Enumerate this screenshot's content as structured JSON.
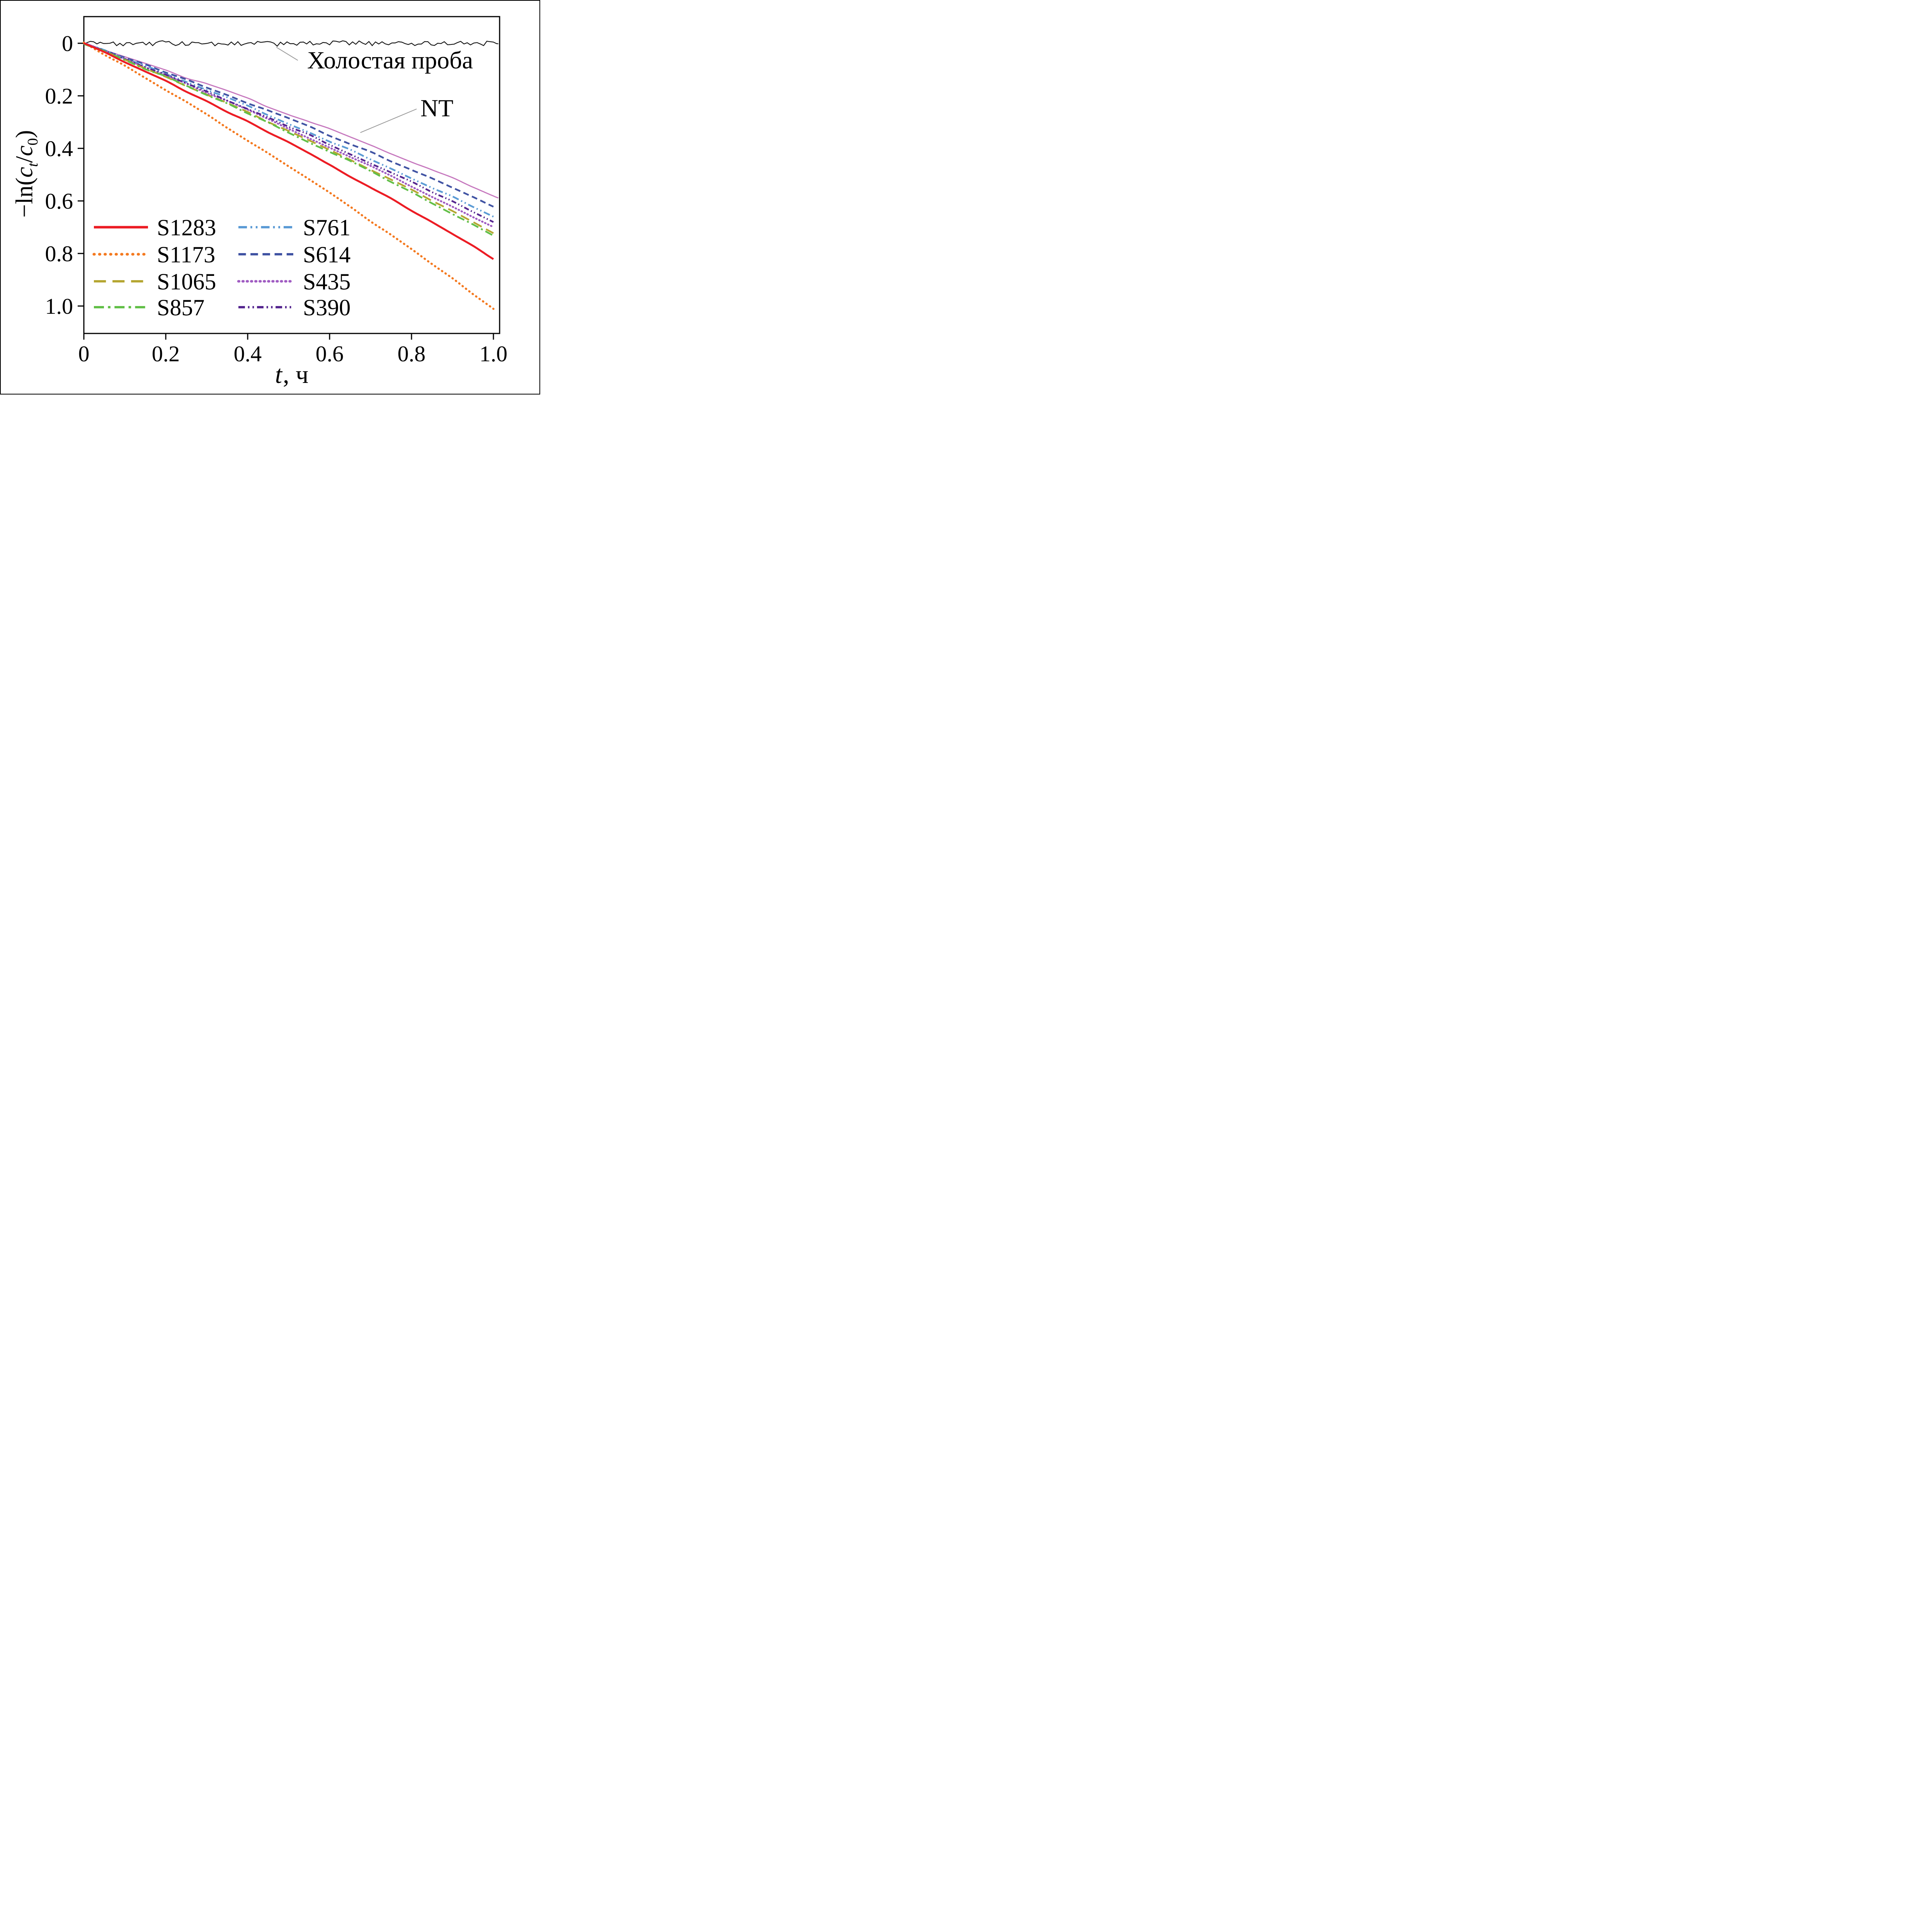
{
  "figure": {
    "background": "#ffffff",
    "border_color": "#000000"
  },
  "chart_data": {
    "type": "line",
    "title": "",
    "xlabel_var": "t",
    "xlabel_rest": ", ч",
    "ylabel": {
      "pre": "−ln(",
      "c1": "c",
      "sub1": "t",
      "slash": "/",
      "c2": "c",
      "sub2": "0",
      "post": ")"
    },
    "xlim": [
      0,
      1.015
    ],
    "ylim_display": [
      -0.1,
      1.1
    ],
    "y_inverted": true,
    "grid": false,
    "xticks": [
      0,
      0.2,
      0.4,
      0.6,
      0.8,
      1.0
    ],
    "xtick_labels": [
      "0",
      "0.2",
      "0.4",
      "0.6",
      "0.8",
      "1.0"
    ],
    "yticks": [
      0,
      0.2,
      0.4,
      0.6,
      0.8,
      1.0
    ],
    "ytick_labels": [
      "0",
      "0.2",
      "0.4",
      "0.6",
      "0.8",
      "1.0"
    ],
    "x": [
      0,
      0.1,
      0.2,
      0.3,
      0.4,
      0.5,
      0.6,
      0.7,
      0.8,
      0.9,
      1.0
    ],
    "series": [
      {
        "name": "Холостая проба",
        "color": "#141414",
        "dash": "solid",
        "width": 2.2,
        "noise_amp": 0.009,
        "noise_step": 0.008,
        "x_end": 1.013,
        "in_legend": false,
        "values": [
          0,
          0.002,
          -0.001,
          0.002,
          0.0,
          0.003,
          -0.002,
          0.001,
          0.002,
          -0.001,
          0.001
        ]
      },
      {
        "name": "NT",
        "color": "#c678be",
        "dash": "solid",
        "width": 3,
        "noise_amp": 0.004,
        "noise_step": 0.05,
        "x_end": 1.012,
        "in_legend": false,
        "values": [
          0,
          0.05,
          0.102,
          0.156,
          0.211,
          0.268,
          0.327,
          0.388,
          0.45,
          0.514,
          0.58
        ]
      },
      {
        "name": "S614",
        "color": "#4053a3",
        "dash": "mdash",
        "width": 4.5,
        "noise_amp": 0.003,
        "noise_step": 0.05,
        "x_end": 1.0,
        "in_legend": true,
        "values": [
          0,
          0.054,
          0.109,
          0.166,
          0.226,
          0.287,
          0.35,
          0.415,
          0.481,
          0.55,
          0.62
        ]
      },
      {
        "name": "S761",
        "color": "#5b9bd5",
        "dash": "dashdotdot",
        "width": 4.5,
        "noise_amp": 0.003,
        "noise_step": 0.05,
        "x_end": 1.0,
        "in_legend": true,
        "values": [
          0,
          0.057,
          0.116,
          0.177,
          0.24,
          0.305,
          0.372,
          0.441,
          0.512,
          0.585,
          0.66
        ]
      },
      {
        "name": "S435",
        "color": "#a05cc2",
        "dash": "dotsmall",
        "width": 5,
        "noise_amp": 0.003,
        "noise_step": 0.05,
        "x_end": 1.0,
        "in_legend": true,
        "values": [
          0,
          0.061,
          0.123,
          0.188,
          0.255,
          0.324,
          0.395,
          0.468,
          0.543,
          0.621,
          0.7
        ]
      },
      {
        "name": "S390",
        "color": "#55268f",
        "dash": "dashdotdot2",
        "width": 4.5,
        "noise_amp": 0.003,
        "noise_step": 0.05,
        "x_end": 1.0,
        "in_legend": true,
        "values": [
          0,
          0.059,
          0.12,
          0.183,
          0.248,
          0.315,
          0.384,
          0.455,
          0.528,
          0.603,
          0.68
        ]
      },
      {
        "name": "S1065",
        "color": "#b5a632",
        "dash": "dash",
        "width": 4.5,
        "noise_amp": 0.003,
        "noise_step": 0.05,
        "x_end": 1.0,
        "in_legend": true,
        "values": [
          0,
          0.062,
          0.127,
          0.193,
          0.262,
          0.333,
          0.406,
          0.481,
          0.559,
          0.638,
          0.72
        ]
      },
      {
        "name": "S857",
        "color": "#62bf48",
        "dash": "dashdot",
        "width": 4.5,
        "noise_amp": 0.003,
        "noise_step": 0.05,
        "x_end": 1.0,
        "in_legend": true,
        "values": [
          0,
          0.063,
          0.128,
          0.196,
          0.266,
          0.338,
          0.412,
          0.488,
          0.567,
          0.647,
          0.73
        ]
      },
      {
        "name": "S1173",
        "color": "#f4791f",
        "dash": "dot",
        "width": 5.5,
        "noise_amp": 0.003,
        "noise_step": 0.05,
        "x_end": 1.0,
        "in_legend": true,
        "values": [
          0,
          0.087,
          0.178,
          0.271,
          0.368,
          0.467,
          0.57,
          0.675,
          0.784,
          0.895,
          1.01
        ]
      },
      {
        "name": "S1283",
        "color": "#ec1c24",
        "dash": "solid",
        "width": 5,
        "noise_amp": 0.003,
        "noise_step": 0.05,
        "x_end": 1.0,
        "in_legend": true,
        "values": [
          0,
          0.071,
          0.144,
          0.22,
          0.298,
          0.379,
          0.462,
          0.548,
          0.636,
          0.727,
          0.82
        ]
      }
    ],
    "legend": {
      "position": "lower-left-inside",
      "columns": [
        [
          "S1283",
          "S1173",
          "S1065",
          "S857"
        ],
        [
          "S761",
          "S614",
          "S435",
          "S390"
        ]
      ]
    },
    "annotations": [
      {
        "id": "blank",
        "label": "Холостая проба",
        "label_x": 0.53,
        "label_y": 0.065,
        "anchor_x": 0.47,
        "anchor_y": 0.015
      },
      {
        "id": "nt",
        "label": "NT",
        "label_x": 0.82,
        "label_y": 0.25,
        "anchor_x": 0.675,
        "anchor_y": 0.34
      }
    ]
  }
}
